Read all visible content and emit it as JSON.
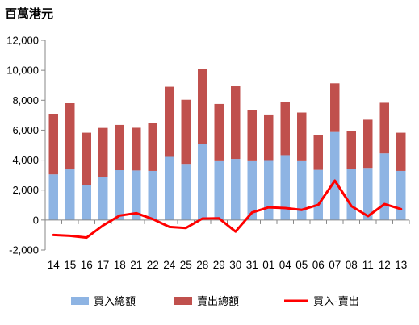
{
  "chart_data": {
    "type": "bar",
    "stacked": true,
    "unit_label": "百萬港元",
    "categories": [
      "14",
      "15",
      "16",
      "17",
      "18",
      "21",
      "22",
      "24",
      "25",
      "28",
      "29",
      "30",
      "31",
      "01",
      "04",
      "05",
      "06",
      "07",
      "08",
      "11",
      "12",
      "13"
    ],
    "ylim": [
      -2000,
      12000
    ],
    "yticks": [
      -2000,
      0,
      2000,
      4000,
      6000,
      8000,
      10000,
      12000
    ],
    "ytick_labels": [
      "-2,000",
      "0",
      "2,000",
      "4,000",
      "6,000",
      "8,000",
      "10,000",
      "12,000"
    ],
    "grid": false,
    "legend_position": "bottom",
    "series": [
      {
        "name": "買入總額",
        "kind": "bar",
        "color": "#8EB4E3",
        "values": [
          3050,
          3380,
          2330,
          2900,
          3330,
          3310,
          3280,
          4220,
          3750,
          5100,
          3930,
          4080,
          3930,
          3950,
          4330,
          3930,
          3350,
          5880,
          3430,
          3480,
          4450,
          3280
        ]
      },
      {
        "name": "賣出總額",
        "kind": "bar",
        "color": "#C0504D",
        "values": [
          4050,
          4420,
          3500,
          3250,
          3020,
          2850,
          3220,
          4680,
          4280,
          5000,
          3820,
          4850,
          3420,
          3100,
          3530,
          3250,
          2330,
          3250,
          2500,
          3220,
          3380,
          2550
        ]
      },
      {
        "name": "買入-賣出",
        "kind": "line",
        "color": "#FF0000",
        "values": [
          -1000,
          -1050,
          -1170,
          -350,
          300,
          460,
          60,
          -460,
          -530,
          100,
          110,
          -770,
          510,
          850,
          800,
          680,
          1020,
          2630,
          930,
          260,
          1070,
          730
        ]
      }
    ]
  }
}
